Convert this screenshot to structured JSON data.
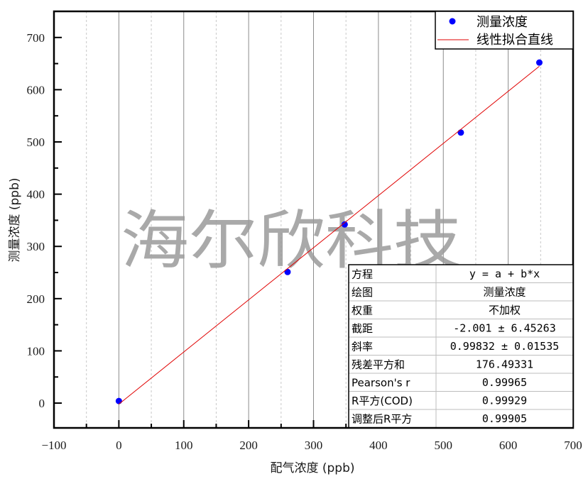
{
  "chart_data": {
    "type": "scatter",
    "title": "",
    "xlabel": "配气浓度 (ppb)",
    "ylabel": "测量浓度 (ppb)",
    "xlim": [
      -100,
      700
    ],
    "ylim": [
      -47.5,
      750
    ],
    "x_ticks": [
      -100,
      0,
      100,
      200,
      300,
      400,
      500,
      600,
      700
    ],
    "y_ticks": [
      0,
      100,
      200,
      300,
      400,
      500,
      600,
      700
    ],
    "grid": "vertical",
    "legend_position": "top-right",
    "series": [
      {
        "name": "测量浓度",
        "kind": "scatter",
        "color": "#0000ff",
        "x": [
          0,
          260,
          348,
          527,
          648
        ],
        "y": [
          4,
          251,
          342,
          518,
          652
        ]
      },
      {
        "name": "线性拟合直线",
        "kind": "line",
        "color": "#e00000",
        "x": [
          0,
          648
        ],
        "y": [
          -2.001,
          644.9
        ]
      }
    ],
    "fit_table": {
      "rows": [
        {
          "label": "方程",
          "value": "y = a + b*x"
        },
        {
          "label": "绘图",
          "value": "测量浓度"
        },
        {
          "label": "权重",
          "value": "不加权"
        },
        {
          "label": "截距",
          "value": "-2.001 ± 6.45263"
        },
        {
          "label": "斜率",
          "value": "0.99832 ± 0.01535"
        },
        {
          "label": "残差平方和",
          "value": "176.49331"
        },
        {
          "label": "Pearson's r",
          "value": "0.99965"
        },
        {
          "label": "R平方(COD)",
          "value": "0.99929"
        },
        {
          "label": "调整后R平方",
          "value": "0.99905"
        }
      ]
    },
    "annotations": [
      "海尔欣科技"
    ]
  },
  "watermark": "海尔欣科技",
  "legend": {
    "items": [
      {
        "label": "测量浓度",
        "symbol": "dot",
        "color": "#0000ff"
      },
      {
        "label": "线性拟合直线",
        "symbol": "line",
        "color": "#e00000"
      }
    ]
  },
  "colors": {
    "grid_major": "#8c8c8c",
    "grid_minor": "#c8c8c8",
    "axis": "#000000",
    "watermark": "#9a9a9a"
  }
}
